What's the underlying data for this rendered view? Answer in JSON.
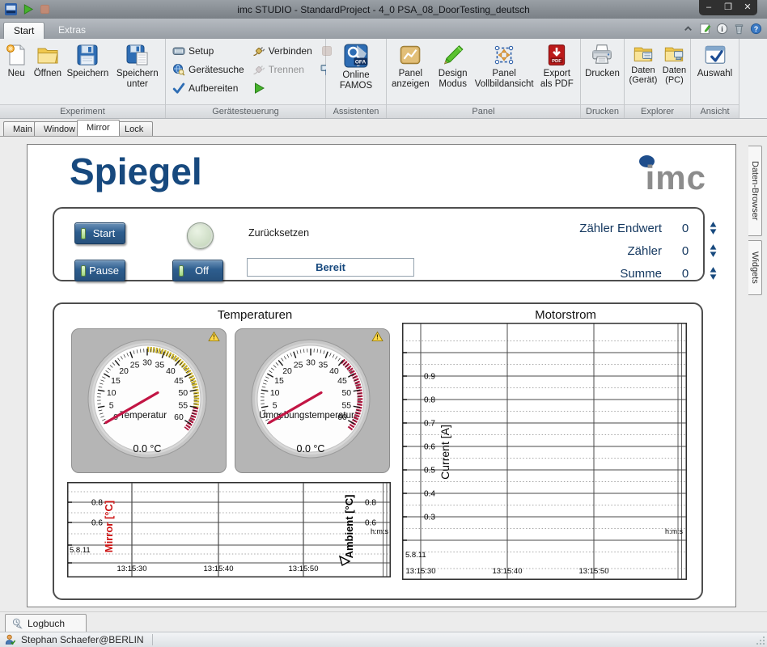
{
  "window": {
    "title": "imc STUDIO - StandardProject - 4_0 PSA_08_DoorTesting_deutsch",
    "minimize": "–",
    "maximize": "❐",
    "close": "✕"
  },
  "ribbon_tabs": {
    "start": "Start",
    "extras": "Extras"
  },
  "ribbon": {
    "experiment": {
      "label": "Experiment",
      "neu": "Neu",
      "oeffnen": "Öffnen",
      "speichern": "Speichern",
      "speichern_unter": "Speichern unter"
    },
    "geraetesteuerung": {
      "label": "Gerätesteuerung",
      "setup": "Setup",
      "geraetesuche": "Gerätesuche",
      "aufbereiten": "Aufbereiten",
      "verbinden": "Verbinden",
      "trennen": "Trennen"
    },
    "assistenten": {
      "label": "Assistenten",
      "online_famos": "Online FAMOS"
    },
    "panel": {
      "label": "Panel",
      "panel_anzeigen": "Panel anzeigen",
      "design_modus": "Design Modus",
      "vollbild": "Panel Vollbildansicht",
      "export_pdf": "Export als PDF"
    },
    "drucken": {
      "label": "Drucken",
      "drucken": "Drucken"
    },
    "explorer": {
      "label": "Explorer",
      "daten_geraet": "Daten (Gerät)",
      "daten_pc": "Daten (PC)"
    },
    "ansicht": {
      "label": "Ansicht",
      "auswahl": "Auswahl"
    }
  },
  "doc_tabs": {
    "main": "Main",
    "window": "Window",
    "mirror": "Mirror",
    "lock": "Lock"
  },
  "side_tabs": {
    "daten_browser": "Daten-Browser",
    "widgets": "Widgets"
  },
  "page": {
    "title": "Spiegel",
    "logo_text": "imc",
    "controls": {
      "start": "Start",
      "pause": "Pause",
      "off": "Off",
      "reset": "Zurücksetzen",
      "status": "Bereit",
      "counters": [
        {
          "label": "Zähler Endwert",
          "value": "0"
        },
        {
          "label": "Zähler",
          "value": "0"
        },
        {
          "label": "Summe",
          "value": "0"
        }
      ]
    },
    "section_left": "Temperaturen",
    "section_right": "Motorstrom"
  },
  "chart_data": [
    {
      "type": "gauge",
      "name": "Temperatur",
      "value": 0,
      "value_text": "0.0 °C",
      "min": 0,
      "max": 60,
      "tick_labels": [
        0,
        5,
        10,
        15,
        20,
        25,
        30,
        35,
        40,
        45,
        50,
        55,
        60
      ],
      "bands": [
        {
          "from": 30,
          "to": 55,
          "color": "#c9b227"
        },
        {
          "from": 55,
          "to": 62,
          "color": "#ad1a40"
        }
      ]
    },
    {
      "type": "gauge",
      "name": "Umgebungstemperatur",
      "value": 0,
      "value_text": "0.0 °C",
      "min": 0,
      "max": 60,
      "tick_labels": [
        0,
        5,
        10,
        15,
        20,
        25,
        30,
        35,
        40,
        45,
        50,
        55,
        60
      ],
      "bands": [
        {
          "from": 40,
          "to": 62,
          "color": "#ad1a40"
        }
      ]
    },
    {
      "type": "line",
      "title": "Motorstrom",
      "ylabel": "Current [A]",
      "ytick_labels": [
        "0.9",
        "0.8",
        "0.7",
        "0.6",
        "0.5",
        "0.4",
        "0.3"
      ],
      "xtick_labels": [
        "13:15:30",
        "13:15:40",
        "13:15:50"
      ],
      "date_label": "5.8.11",
      "unit_label": "h:m:s",
      "grid": true,
      "series": []
    },
    {
      "type": "line",
      "ylabel_left": "Mirror [°C]",
      "ylabel_right": "Ambient [°C]",
      "ytick_labels": [
        "0.8",
        "0.6"
      ],
      "xtick_labels": [
        "13:15:30",
        "13:15:40",
        "13:15:50"
      ],
      "date_label": "5.8.11",
      "unit_label": "h:m:s",
      "grid": true,
      "series": []
    }
  ],
  "bottom": {
    "logbuch": "Logbuch",
    "user": "Stephan Schaefer@BERLIN"
  }
}
